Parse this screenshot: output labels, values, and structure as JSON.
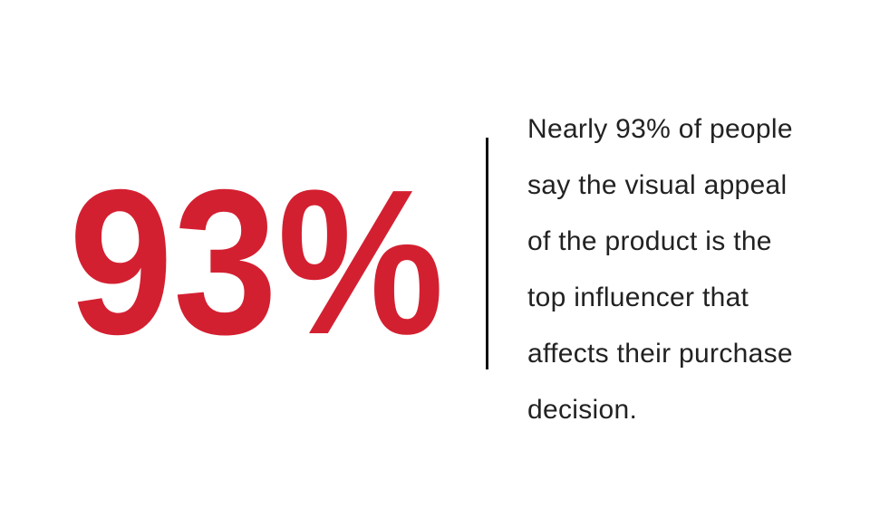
{
  "stat": "93%",
  "description_lines": [
    "Nearly 93% of people",
    "say the visual appeal",
    "of the product is the",
    "top influencer that",
    "affects their purchase",
    "decision."
  ]
}
